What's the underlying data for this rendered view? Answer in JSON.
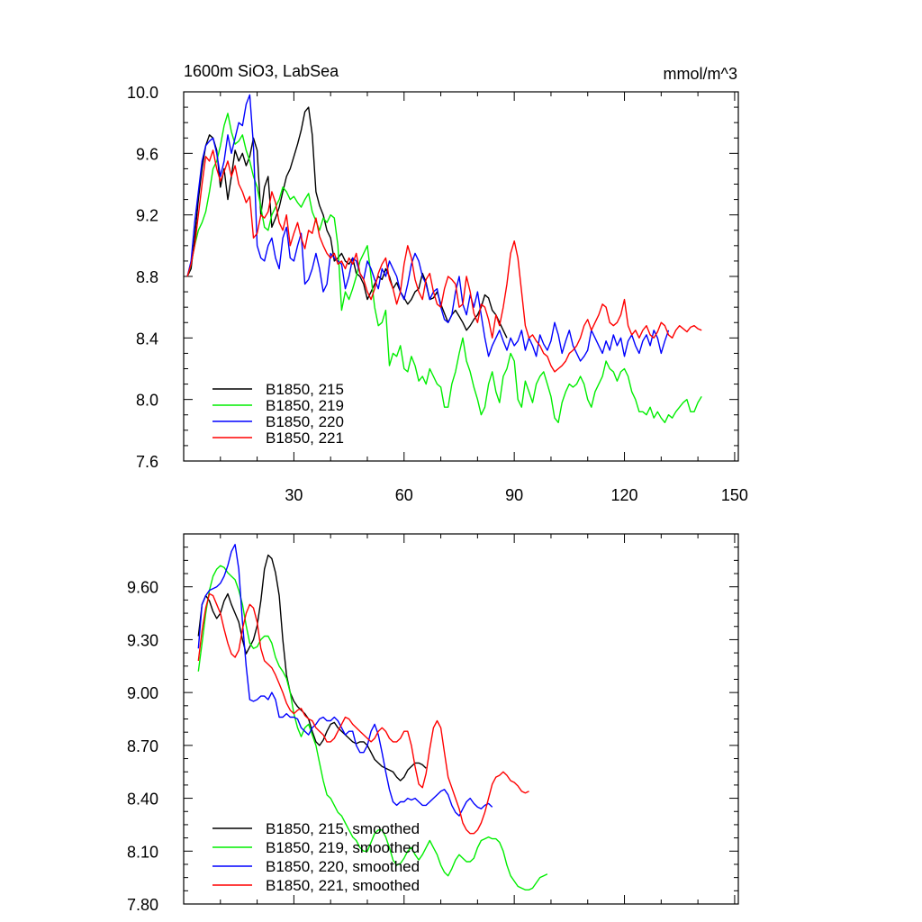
{
  "chart_data": [
    {
      "type": "line",
      "title": "1600m SiO3, LabSea",
      "units": "mmol/m^3",
      "xlim": [
        0,
        151
      ],
      "ylim": [
        7.6,
        10.0
      ],
      "x_ticks": [
        30,
        60,
        90,
        120,
        150
      ],
      "y_ticks": [
        "7.6",
        "8.0",
        "8.4",
        "8.8",
        "9.2",
        "9.6",
        "10.0"
      ],
      "series": [
        {
          "name": "B1850, 215",
          "color": "#000000",
          "x_start": 1,
          "values": [
            8.8,
            8.85,
            9.05,
            9.3,
            9.5,
            9.65,
            9.72,
            9.7,
            9.62,
            9.38,
            9.5,
            9.3,
            9.45,
            9.62,
            9.55,
            9.6,
            9.52,
            9.58,
            9.7,
            9.62,
            9.2,
            9.38,
            9.45,
            9.12,
            9.18,
            9.25,
            9.35,
            9.45,
            9.5,
            9.58,
            9.66,
            9.75,
            9.87,
            9.9,
            9.72,
            9.35,
            9.26,
            9.2,
            9.1,
            9.05,
            8.9,
            8.92,
            8.95,
            8.9,
            8.88,
            8.92,
            8.82,
            8.8,
            8.75,
            8.65,
            8.7,
            8.75,
            8.8,
            8.78,
            8.85,
            8.8,
            8.72,
            8.76,
            8.7,
            8.66,
            8.62,
            8.65,
            8.7,
            8.72,
            8.82,
            8.76,
            8.65,
            8.66,
            8.7,
            8.62,
            8.56,
            8.5,
            8.55,
            8.58,
            8.54,
            8.5,
            8.45,
            8.48,
            8.52,
            8.55,
            8.6,
            8.68,
            8.66,
            8.58,
            8.55,
            8.5,
            8.45,
            8.4
          ]
        },
        {
          "name": "B1850, 219",
          "color": "#00ee00",
          "x_start": 1,
          "values": [
            8.8,
            8.88,
            9.0,
            9.1,
            9.15,
            9.22,
            9.35,
            9.5,
            9.55,
            9.65,
            9.78,
            9.86,
            9.74,
            9.66,
            9.68,
            9.72,
            9.62,
            9.55,
            9.45,
            9.38,
            9.25,
            9.12,
            9.1,
            9.2,
            9.25,
            9.3,
            9.38,
            9.35,
            9.3,
            9.32,
            9.28,
            9.25,
            9.3,
            9.34,
            9.22,
            9.16,
            9.1,
            9.18,
            9.15,
            9.2,
            9.18,
            9.0,
            8.58,
            8.7,
            8.65,
            8.72,
            8.8,
            8.9,
            8.95,
            9.0,
            8.8,
            8.6,
            8.48,
            8.5,
            8.58,
            8.22,
            8.3,
            8.28,
            8.35,
            8.2,
            8.18,
            8.28,
            8.22,
            8.12,
            8.15,
            8.1,
            8.2,
            8.15,
            8.1,
            8.08,
            7.95,
            7.95,
            8.1,
            8.18,
            8.3,
            8.4,
            8.25,
            8.18,
            8.08,
            8.0,
            7.9,
            7.95,
            8.1,
            8.18,
            8.05,
            7.98,
            8.15,
            8.2,
            8.3,
            8.25,
            8.0,
            7.95,
            8.12,
            8.05,
            7.98,
            8.1,
            8.15,
            8.18,
            8.1,
            8.02,
            7.88,
            7.85,
            7.98,
            8.05,
            8.1,
            8.08,
            8.1,
            8.15,
            8.1,
            8.0,
            7.95,
            8.05,
            8.1,
            8.15,
            8.25,
            8.2,
            8.18,
            8.12,
            8.18,
            8.2,
            8.15,
            8.05,
            8.0,
            7.92,
            7.92,
            7.9,
            7.95,
            7.88,
            7.92,
            7.88,
            7.85,
            7.9,
            7.88,
            7.92,
            7.95,
            7.98,
            8.0,
            7.92,
            7.92,
            7.98,
            8.02
          ]
        },
        {
          "name": "B1850, 220",
          "color": "#0000ff",
          "x_start": 1,
          "values": [
            8.8,
            8.9,
            9.15,
            9.35,
            9.55,
            9.65,
            9.68,
            9.7,
            9.6,
            9.45,
            9.55,
            9.72,
            9.6,
            9.7,
            9.8,
            9.78,
            9.92,
            9.98,
            9.65,
            9.0,
            8.92,
            8.9,
            9.0,
            9.05,
            8.92,
            8.85,
            9.05,
            9.12,
            8.92,
            8.9,
            9.0,
            9.08,
            8.75,
            8.78,
            8.85,
            8.95,
            8.85,
            8.7,
            8.75,
            8.95,
            8.92,
            8.9,
            8.88,
            8.72,
            8.8,
            8.92,
            8.9,
            8.82,
            8.78,
            8.9,
            8.85,
            8.78,
            8.72,
            8.85,
            8.8,
            8.9,
            8.85,
            8.8,
            8.7,
            8.65,
            8.75,
            8.88,
            8.95,
            8.9,
            8.8,
            8.75,
            8.65,
            8.7,
            8.72,
            8.6,
            8.52,
            8.5,
            8.55,
            8.7,
            8.8,
            8.62,
            8.55,
            8.68,
            8.6,
            8.7,
            8.55,
            8.4,
            8.28,
            8.35,
            8.4,
            8.45,
            8.38,
            8.32,
            8.4,
            8.35,
            8.38,
            8.45,
            8.32,
            8.4,
            8.35,
            8.28,
            8.42,
            8.36,
            8.32,
            8.38,
            8.5,
            8.42,
            8.3,
            8.38,
            8.45,
            8.35,
            8.3,
            8.25,
            8.28,
            8.32,
            8.45,
            8.4,
            8.35,
            8.3,
            8.38,
            8.32,
            8.42,
            8.35,
            8.4,
            8.28,
            8.38,
            8.42,
            8.35,
            8.3,
            8.38,
            8.42,
            8.35,
            8.45,
            8.4,
            8.3,
            8.38,
            8.45
          ]
        },
        {
          "name": "B1850, 221",
          "color": "#ff0000",
          "x_start": 1,
          "values": [
            8.8,
            8.88,
            9.0,
            9.2,
            9.4,
            9.58,
            9.55,
            9.62,
            9.5,
            9.42,
            9.48,
            9.55,
            9.45,
            9.52,
            9.4,
            9.35,
            9.28,
            9.32,
            9.05,
            9.08,
            9.2,
            9.18,
            9.22,
            9.35,
            9.28,
            9.15,
            9.1,
            9.2,
            9.0,
            9.08,
            9.15,
            9.05,
            8.98,
            9.1,
            9.08,
            9.18,
            9.06,
            9.0,
            8.95,
            8.92,
            8.95,
            8.88,
            8.9,
            8.85,
            8.92,
            8.88,
            8.95,
            8.82,
            8.78,
            8.7,
            8.65,
            8.72,
            8.82,
            8.88,
            8.92,
            8.78,
            8.72,
            8.62,
            8.7,
            8.88,
            9.0,
            8.92,
            8.78,
            8.7,
            8.65,
            8.78,
            8.82,
            8.7,
            8.62,
            8.6,
            8.72,
            8.8,
            8.78,
            8.75,
            8.6,
            8.62,
            8.8,
            8.7,
            8.56,
            8.5,
            8.62,
            8.6,
            8.52,
            8.4,
            8.55,
            8.48,
            8.6,
            8.75,
            8.95,
            9.03,
            8.92,
            8.7,
            8.48,
            8.4,
            8.42,
            8.38,
            8.35,
            8.3,
            8.28,
            8.22,
            8.18,
            8.2,
            8.22,
            8.25,
            8.3,
            8.32,
            8.35,
            8.4,
            8.48,
            8.52,
            8.45,
            8.5,
            8.55,
            8.62,
            8.6,
            8.5,
            8.48,
            8.5,
            8.55,
            8.65,
            8.48,
            8.42,
            8.45,
            8.4,
            8.45,
            8.48,
            8.42,
            8.4,
            8.44,
            8.5,
            8.48,
            8.42,
            8.4,
            8.45,
            8.48,
            8.46,
            8.44,
            8.47,
            8.48,
            8.46,
            8.45
          ]
        }
      ]
    },
    {
      "type": "line",
      "xlim": [
        0,
        151
      ],
      "ylim": [
        7.8,
        9.9
      ],
      "y_ticks": [
        "7.80",
        "8.10",
        "8.40",
        "8.70",
        "9.00",
        "9.30",
        "9.60"
      ],
      "series": [
        {
          "name": "B1850, 215, smoothed",
          "color": "#000000",
          "x_start": 4,
          "values": [
            9.32,
            9.5,
            9.55,
            9.52,
            9.46,
            9.42,
            9.45,
            9.52,
            9.56,
            9.5,
            9.45,
            9.4,
            9.3,
            9.22,
            9.26,
            9.3,
            9.38,
            9.52,
            9.7,
            9.78,
            9.76,
            9.68,
            9.55,
            9.3,
            9.1,
            9.0,
            8.95,
            8.92,
            8.9,
            8.88,
            8.85,
            8.78,
            8.72,
            8.7,
            8.73,
            8.78,
            8.82,
            8.83,
            8.8,
            8.78,
            8.76,
            8.74,
            8.72,
            8.71,
            8.72,
            8.72,
            8.7,
            8.66,
            8.62,
            8.6,
            8.58,
            8.57,
            8.56,
            8.55,
            8.52,
            8.5,
            8.52,
            8.56,
            8.58,
            8.6,
            8.6,
            8.59,
            8.57
          ]
        },
        {
          "name": "B1850, 219, smoothed",
          "color": "#00ee00",
          "x_start": 4,
          "values": [
            9.12,
            9.28,
            9.45,
            9.58,
            9.66,
            9.7,
            9.72,
            9.71,
            9.68,
            9.66,
            9.64,
            9.58,
            9.5,
            9.38,
            9.28,
            9.25,
            9.26,
            9.3,
            9.32,
            9.32,
            9.28,
            9.2,
            9.15,
            9.12,
            9.08,
            9.0,
            8.88,
            8.8,
            8.75,
            8.8,
            8.82,
            8.76,
            8.7,
            8.6,
            8.5,
            8.42,
            8.4,
            8.36,
            8.32,
            8.3,
            8.26,
            8.22,
            8.18,
            8.16,
            8.12,
            8.1,
            8.1,
            8.15,
            8.2,
            8.22,
            8.22,
            8.18,
            8.12,
            8.05,
            8.02,
            8.03,
            8.06,
            8.1,
            8.12,
            8.08,
            8.05,
            8.08,
            8.12,
            8.16,
            8.12,
            8.08,
            8.02,
            7.98,
            7.96,
            8.0,
            8.05,
            8.08,
            8.06,
            8.04,
            8.04,
            8.06,
            8.12,
            8.16,
            8.17,
            8.18,
            8.17,
            8.17,
            8.15,
            8.1,
            8.02,
            7.96,
            7.93,
            7.9,
            7.89,
            7.88,
            7.88,
            7.89,
            7.92,
            7.95,
            7.96,
            7.97
          ]
        },
        {
          "name": "B1850, 220, smoothed",
          "color": "#0000ff",
          "x_start": 4,
          "values": [
            9.25,
            9.5,
            9.55,
            9.58,
            9.59,
            9.6,
            9.62,
            9.66,
            9.72,
            9.8,
            9.84,
            9.7,
            9.4,
            9.15,
            8.96,
            8.95,
            8.96,
            8.98,
            8.98,
            8.96,
            9.0,
            8.96,
            8.86,
            8.86,
            8.88,
            8.86,
            8.86,
            8.85,
            8.8,
            8.78,
            8.76,
            8.8,
            8.82,
            8.85,
            8.86,
            8.84,
            8.84,
            8.86,
            8.84,
            8.8,
            8.76,
            8.78,
            8.78,
            8.7,
            8.66,
            8.66,
            8.7,
            8.78,
            8.82,
            8.76,
            8.66,
            8.55,
            8.45,
            8.38,
            8.36,
            8.38,
            8.38,
            8.4,
            8.39,
            8.4,
            8.38,
            8.36,
            8.36,
            8.38,
            8.4,
            8.42,
            8.44,
            8.45,
            8.42,
            8.36,
            8.32,
            8.3,
            8.34,
            8.38,
            8.4,
            8.37,
            8.35,
            8.34,
            8.36,
            8.37,
            8.35
          ]
        },
        {
          "name": "B1850, 221, smoothed",
          "color": "#ff0000",
          "x_start": 4,
          "values": [
            9.18,
            9.35,
            9.48,
            9.56,
            9.55,
            9.5,
            9.45,
            9.36,
            9.28,
            9.22,
            9.2,
            9.24,
            9.36,
            9.45,
            9.5,
            9.48,
            9.4,
            9.25,
            9.18,
            9.16,
            9.14,
            9.1,
            9.05,
            9.0,
            8.94,
            8.9,
            8.88,
            8.9,
            8.91,
            8.87,
            8.85,
            8.84,
            8.8,
            8.78,
            8.76,
            8.72,
            8.72,
            8.74,
            8.78,
            8.82,
            8.86,
            8.85,
            8.82,
            8.8,
            8.78,
            8.76,
            8.74,
            8.72,
            8.74,
            8.78,
            8.8,
            8.78,
            8.74,
            8.72,
            8.72,
            8.74,
            8.78,
            8.78,
            8.7,
            8.58,
            8.48,
            8.46,
            8.54,
            8.68,
            8.8,
            8.84,
            8.8,
            8.66,
            8.52,
            8.46,
            8.4,
            8.34,
            8.26,
            8.22,
            8.2,
            8.2,
            8.22,
            8.26,
            8.32,
            8.4,
            8.48,
            8.52,
            8.53,
            8.55,
            8.53,
            8.5,
            8.49,
            8.47,
            8.44,
            8.43,
            8.44
          ]
        }
      ]
    }
  ]
}
